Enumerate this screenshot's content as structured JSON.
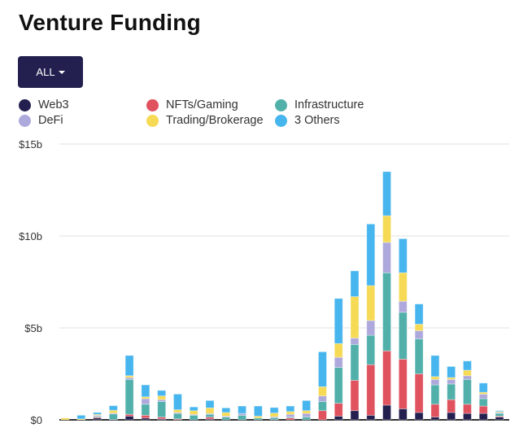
{
  "title": "Venture Funding",
  "filter_button": {
    "label": "ALL",
    "icon": "caret-down-icon"
  },
  "chart_data": {
    "type": "bar",
    "stacked": true,
    "title": "Venture Funding",
    "xlabel": "",
    "ylabel": "",
    "ylim": [
      0,
      15
    ],
    "yticks": [
      {
        "value": 0,
        "label": "$0"
      },
      {
        "value": 5,
        "label": "$5b"
      },
      {
        "value": 10,
        "label": "$10b"
      },
      {
        "value": 15,
        "label": "$15b"
      }
    ],
    "grid": true,
    "legend_position": "top-left",
    "series": [
      {
        "name": "Web3",
        "color": "#23204f",
        "values": [
          0,
          0,
          0.1,
          0.02,
          0.2,
          0.1,
          0.05,
          0,
          0,
          0.05,
          0,
          0,
          0,
          0.02,
          0,
          0,
          0,
          0.2,
          0.5,
          0.25,
          0.8,
          0.6,
          0.4,
          0.15,
          0.4,
          0.35,
          0.35,
          0.15
        ]
      },
      {
        "name": "NFTs/Gaming",
        "color": "#e0525e",
        "values": [
          0,
          0,
          0.05,
          0,
          0.1,
          0.15,
          0.1,
          0.05,
          0,
          0.1,
          0,
          0,
          0,
          0,
          0.1,
          0,
          0.5,
          0.7,
          1.65,
          2.75,
          2.95,
          2.7,
          2.1,
          0.7,
          0.7,
          0.5,
          0.4,
          0.05
        ]
      },
      {
        "name": "Infrastructure",
        "color": "#52b0ab",
        "values": [
          0,
          0,
          0.05,
          0.3,
          1.9,
          0.6,
          0.85,
          0.3,
          0.25,
          0.15,
          0.15,
          0.25,
          0.1,
          0.1,
          0.05,
          0.15,
          0.5,
          1.95,
          1.95,
          1.6,
          4.25,
          2.55,
          1.9,
          1.05,
          0.85,
          1.35,
          0.4,
          0.15
        ]
      },
      {
        "name": "DeFi",
        "color": "#aea9dc",
        "values": [
          0,
          0,
          0.05,
          0.05,
          0.1,
          0.3,
          0.1,
          0.05,
          0.05,
          0.05,
          0.05,
          0.1,
          0,
          0.05,
          0.15,
          0.2,
          0.3,
          0.55,
          0.35,
          0.8,
          1.65,
          0.6,
          0.45,
          0.3,
          0.25,
          0.2,
          0.25,
          0.05
        ]
      },
      {
        "name": "Trading/Brokerage",
        "color": "#f6da55",
        "values": [
          0.1,
          0.05,
          0.05,
          0.15,
          0.1,
          0.1,
          0.2,
          0.15,
          0.2,
          0.3,
          0.2,
          0,
          0.1,
          0.2,
          0.15,
          0.15,
          0.5,
          0.75,
          2.25,
          1.9,
          1.45,
          1.55,
          0.35,
          0.15,
          0.1,
          0.3,
          0.1,
          0.05
        ]
      },
      {
        "name": "3 Others",
        "color": "#47b5ee",
        "values": [
          0,
          0.2,
          0.1,
          0.25,
          1.1,
          0.65,
          0.3,
          0.85,
          0.2,
          0.4,
          0.25,
          0.4,
          0.55,
          0.3,
          0.3,
          0.55,
          1.9,
          2.45,
          1.4,
          3.35,
          2.4,
          1.85,
          1.1,
          1.15,
          0.6,
          0.5,
          0.5,
          0.05
        ]
      }
    ]
  }
}
